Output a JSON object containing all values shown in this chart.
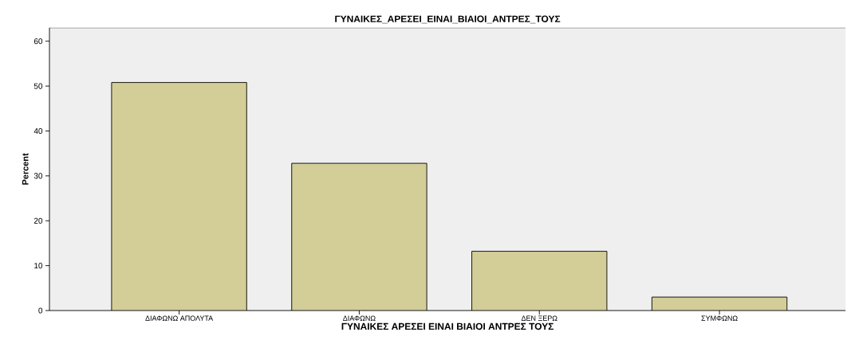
{
  "chart_data": {
    "type": "bar",
    "title": "ΓΥΝΑΙΚΕΣ_ΑΡΕΣΕΙ_ΕΙΝΑΙ_ΒΙΑΙΟΙ_ΑΝΤΡΕΣ_ΤΟΥΣ",
    "xlabel": "ΓΥΝΑΙΚΕΣ ΑΡΕΣΕΙ ΕΙΝΑΙ ΒΙΑΙΟΙ ΑΝΤΡΕΣ ΤΟΥΣ",
    "ylabel": "Percent",
    "categories": [
      "ΔΙΑΦΩΝΩ ΑΠΟΛΥΤΑ",
      "ΔΙΑΦΩΝΩ",
      "ΔΕΝ ΞΕΡΩ",
      "ΣΥΜΦΩΝΩ"
    ],
    "values": [
      50.8,
      32.8,
      13.2,
      3.0
    ],
    "color": "#d3cd98",
    "ylim": [
      0,
      63
    ],
    "yticks": [
      0,
      10,
      20,
      30,
      40,
      50,
      60
    ],
    "grid": false
  }
}
